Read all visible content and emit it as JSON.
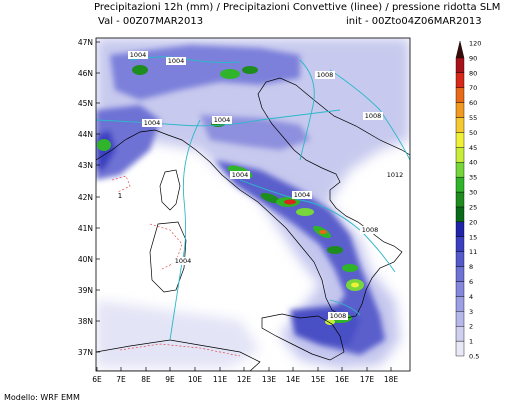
{
  "header": {
    "title": "Precipitazioni 12h (mm) / Precipitazioni Convettive (linee) / pressione ridotta SLM",
    "valid": "Val -  00Z07MAR2013",
    "init": "init - 00Zto04Z06MAR2013"
  },
  "footer": {
    "model": "Modello: WRF EMM"
  },
  "map": {
    "lat_labels": [
      "47N",
      "46N",
      "45N",
      "44N",
      "43N",
      "42N",
      "41N",
      "40N",
      "39N",
      "38N",
      "37N"
    ],
    "lon_labels": [
      "6E",
      "7E",
      "8E",
      "9E",
      "10E",
      "11E",
      "12E",
      "13E",
      "14E",
      "15E",
      "16E",
      "17E",
      "18E"
    ],
    "isobar_labels": [
      "1004",
      "1004",
      "1008",
      "1004",
      "1004",
      "1008",
      "1004",
      "1004",
      "1012",
      "1008",
      "1004",
      "1008"
    ],
    "side_label": "1"
  },
  "legend": {
    "levels": [
      "0.5",
      "1",
      "2",
      "3",
      "4",
      "6",
      "8",
      "11",
      "15",
      "20",
      "25",
      "30",
      "35",
      "40",
      "45",
      "50",
      "55",
      "60",
      "70",
      "80",
      "90",
      "120"
    ],
    "colors": [
      "#e8e8f6",
      "#cfd0f0",
      "#b6b8ea",
      "#9c9fe3",
      "#8487db",
      "#6e72d4",
      "#5459cb",
      "#3a3fc0",
      "#1f24a8",
      "#0a6a1a",
      "#1e8c1e",
      "#2fb42a",
      "#76d63a",
      "#c8ec3a",
      "#f0f03a",
      "#f5c930",
      "#f09a22",
      "#e86a18",
      "#d8281a",
      "#a8121a",
      "#701010",
      "#3a0a0a"
    ]
  }
}
